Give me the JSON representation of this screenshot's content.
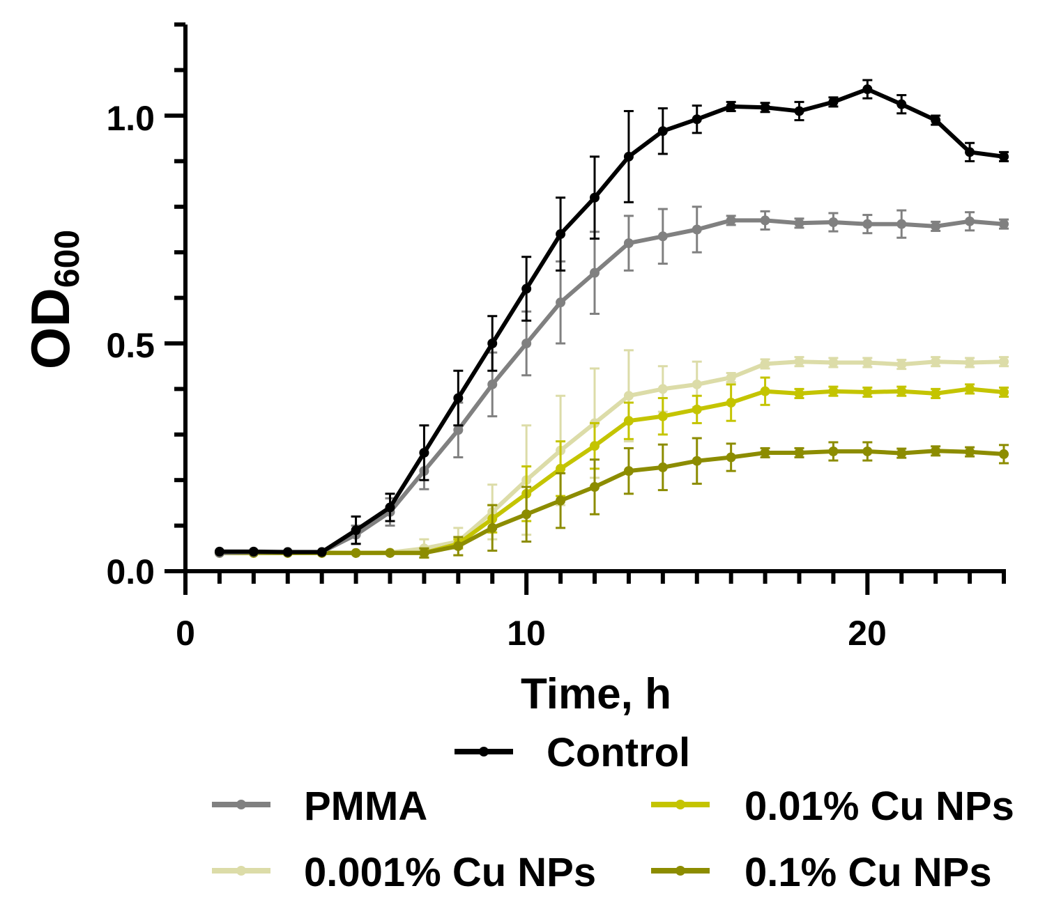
{
  "chart_data": {
    "type": "line",
    "xlabel": "Time, h",
    "ylabel": "OD",
    "ylabel_subscript": "600",
    "xlim": [
      0,
      24
    ],
    "ylim": [
      0,
      1.2
    ],
    "xticks": [
      "0",
      "10",
      "20"
    ],
    "yticks": [
      "0.0",
      "0.5",
      "1.0"
    ],
    "grid": false,
    "legend_position": "bottom",
    "x": [
      1,
      2,
      3,
      4,
      5,
      6,
      7,
      8,
      9,
      10,
      11,
      12,
      13,
      14,
      15,
      16,
      17,
      18,
      19,
      20,
      21,
      22,
      23,
      24
    ],
    "series": [
      {
        "name": "Control",
        "color": "#000000",
        "values": [
          0.043,
          0.043,
          0.042,
          0.042,
          0.09,
          0.14,
          0.26,
          0.38,
          0.5,
          0.62,
          0.74,
          0.82,
          0.91,
          0.966,
          0.992,
          1.02,
          1.018,
          1.01,
          1.03,
          1.058,
          1.025,
          0.99,
          0.92,
          0.91
        ],
        "errors": [
          0,
          0,
          0,
          0,
          0.03,
          0.03,
          0.06,
          0.06,
          0.06,
          0.07,
          0.08,
          0.09,
          0.1,
          0.05,
          0.03,
          0.01,
          0.01,
          0.02,
          0.01,
          0.02,
          0.02,
          0.01,
          0.02,
          0.01
        ]
      },
      {
        "name": "PMMA",
        "color": "#808080",
        "values": [
          0.04,
          0.042,
          0.042,
          0.042,
          0.08,
          0.13,
          0.22,
          0.31,
          0.41,
          0.5,
          0.59,
          0.655,
          0.72,
          0.735,
          0.75,
          0.77,
          0.77,
          0.764,
          0.766,
          0.762,
          0.762,
          0.757,
          0.768,
          0.762
        ],
        "errors": [
          0,
          0,
          0,
          0,
          0.02,
          0.03,
          0.04,
          0.06,
          0.07,
          0.07,
          0.09,
          0.09,
          0.06,
          0.06,
          0.05,
          0.01,
          0.02,
          0.01,
          0.02,
          0.02,
          0.03,
          0.01,
          0.02,
          0.01
        ]
      },
      {
        "name": "0.001% Cu NPs",
        "color": "#dcdca8",
        "values": [
          0.04,
          0.041,
          0.041,
          0.041,
          0.04,
          0.041,
          0.05,
          0.065,
          0.13,
          0.2,
          0.265,
          0.325,
          0.385,
          0.4,
          0.41,
          0.425,
          0.455,
          0.46,
          0.458,
          0.458,
          0.454,
          0.46,
          0.458,
          0.46
        ],
        "errors": [
          0,
          0,
          0,
          0,
          0,
          0,
          0.02,
          0.03,
          0.06,
          0.12,
          0.12,
          0.12,
          0.1,
          0.05,
          0.05,
          0.01,
          0.01,
          0.01,
          0.01,
          0.01,
          0.01,
          0.01,
          0.01,
          0.01
        ]
      },
      {
        "name": "0.01% Cu NPs",
        "color": "#c4c400",
        "values": [
          0.04,
          0.04,
          0.04,
          0.04,
          0.04,
          0.04,
          0.04,
          0.06,
          0.115,
          0.17,
          0.225,
          0.275,
          0.33,
          0.34,
          0.355,
          0.37,
          0.395,
          0.39,
          0.395,
          0.393,
          0.395,
          0.39,
          0.4,
          0.393
        ],
        "errors": [
          0,
          0,
          0,
          0,
          0,
          0,
          0.01,
          0.01,
          0.03,
          0.06,
          0.06,
          0.05,
          0.04,
          0.04,
          0.03,
          0.04,
          0.03,
          0.01,
          0.01,
          0.01,
          0.01,
          0.01,
          0.01,
          0.01
        ]
      },
      {
        "name": "0.1% Cu NPs",
        "color": "#8c8c00",
        "values": [
          0.04,
          0.04,
          0.04,
          0.04,
          0.04,
          0.04,
          0.04,
          0.055,
          0.095,
          0.125,
          0.155,
          0.185,
          0.22,
          0.228,
          0.242,
          0.25,
          0.26,
          0.26,
          0.263,
          0.263,
          0.259,
          0.264,
          0.262,
          0.257
        ],
        "errors": [
          0,
          0,
          0,
          0,
          0,
          0,
          0.01,
          0.02,
          0.05,
          0.06,
          0.06,
          0.06,
          0.05,
          0.05,
          0.05,
          0.03,
          0.01,
          0.01,
          0.02,
          0.02,
          0.01,
          0.01,
          0.01,
          0.02
        ]
      }
    ]
  }
}
